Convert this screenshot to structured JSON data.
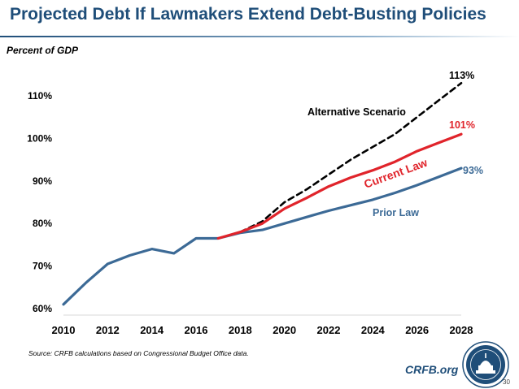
{
  "title": "Projected Debt If Lawmakers Extend Debt-Busting Policies",
  "source": "Source: CRFB calculations based on Congressional Budget Office data.",
  "site": "CRFB.org",
  "page_number": "30",
  "chart_data": {
    "type": "line",
    "ylabel": "Percent of GDP",
    "ylim": [
      60,
      113
    ],
    "xlim": [
      2010,
      2028
    ],
    "yticks": [
      "60%",
      "70%",
      "80%",
      "90%",
      "100%",
      "110%"
    ],
    "xticks": [
      "2010",
      "2012",
      "2014",
      "2016",
      "2018",
      "2020",
      "2022",
      "2024",
      "2026",
      "2028"
    ],
    "grid": false,
    "series": [
      {
        "name": "Prior Law",
        "color": "#3c6a96",
        "dashed": false,
        "x": [
          2010,
          2011,
          2012,
          2013,
          2014,
          2015,
          2016,
          2017,
          2018,
          2019,
          2020,
          2021,
          2022,
          2023,
          2024,
          2025,
          2026,
          2027,
          2028
        ],
        "y": [
          61,
          66,
          70.5,
          72.5,
          74,
          73,
          76.5,
          76.5,
          77.8,
          78.5,
          80,
          81.5,
          83,
          84.3,
          85.6,
          87.2,
          89,
          91,
          93
        ]
      },
      {
        "name": "Current Law",
        "color": "#e0242b",
        "dashed": false,
        "x": [
          2017,
          2018,
          2019,
          2020,
          2021,
          2022,
          2023,
          2024,
          2025,
          2026,
          2027,
          2028
        ],
        "y": [
          76.5,
          78,
          80,
          83.5,
          86,
          88.7,
          90.8,
          92.5,
          94.5,
          97,
          99,
          101
        ]
      },
      {
        "name": "Alternative Scenario",
        "color": "#000000",
        "dashed": true,
        "x": [
          2018,
          2019,
          2020,
          2021,
          2022,
          2023,
          2024,
          2025,
          2026,
          2027,
          2028
        ],
        "y": [
          78,
          80.5,
          85,
          88,
          91.5,
          95,
          98,
          101,
          105,
          109,
          113
        ]
      }
    ],
    "end_labels": [
      {
        "text": "113%",
        "color": "#000000"
      },
      {
        "text": "101%",
        "color": "#e0242b"
      },
      {
        "text": "93%",
        "color": "#3c6a96"
      }
    ]
  }
}
